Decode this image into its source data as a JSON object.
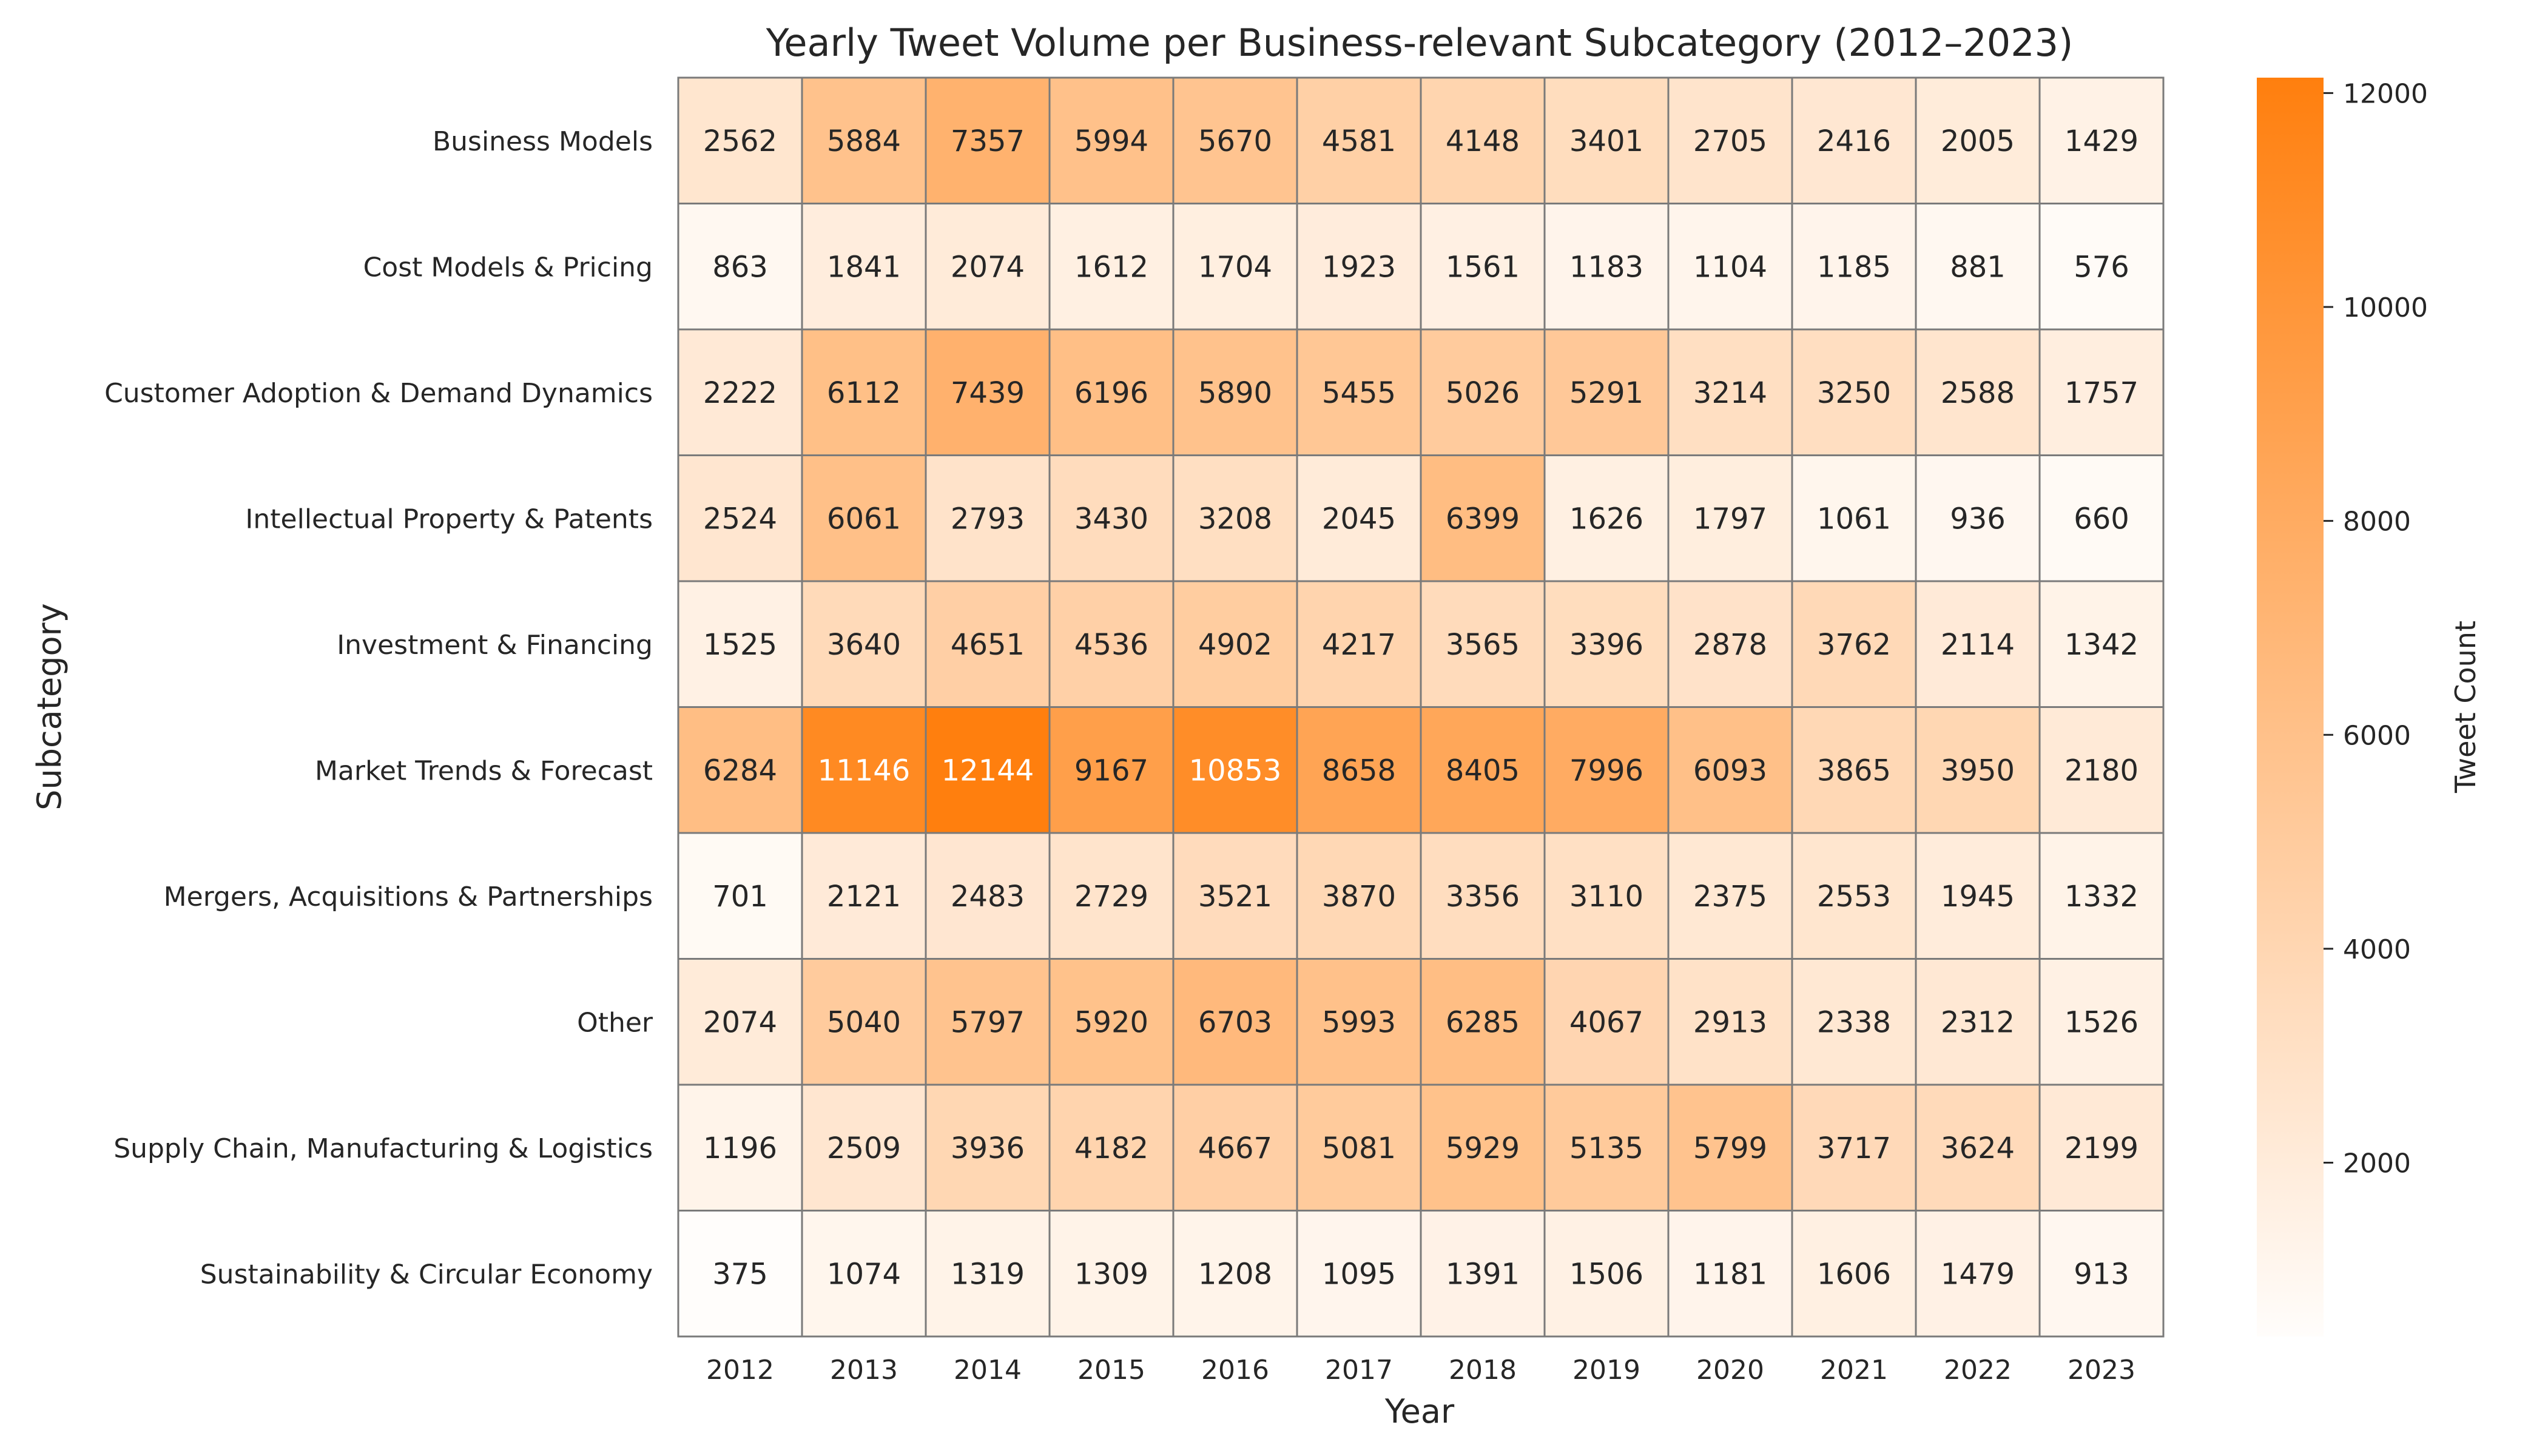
{
  "chart_data": {
    "type": "heatmap",
    "title": "Yearly Tweet Volume per Business-relevant Subcategory (2012–2023)",
    "xlabel": "Year",
    "ylabel": "Subcategory",
    "x": [
      "2012",
      "2013",
      "2014",
      "2015",
      "2016",
      "2017",
      "2018",
      "2019",
      "2020",
      "2021",
      "2022",
      "2023"
    ],
    "y": [
      "Business Models",
      "Cost Models & Pricing",
      "Customer Adoption & Demand Dynamics",
      "Intellectual Property & Patents",
      "Investment & Financing",
      "Market Trends & Forecast",
      "Mergers, Acquisitions & Partnerships",
      "Other",
      "Supply Chain, Manufacturing & Logistics",
      "Sustainability & Circular Economy"
    ],
    "values": [
      [
        2562,
        5884,
        7357,
        5994,
        5670,
        4581,
        4148,
        3401,
        2705,
        2416,
        2005,
        1429
      ],
      [
        863,
        1841,
        2074,
        1612,
        1704,
        1923,
        1561,
        1183,
        1104,
        1185,
        881,
        576
      ],
      [
        2222,
        6112,
        7439,
        6196,
        5890,
        5455,
        5026,
        5291,
        3214,
        3250,
        2588,
        1757
      ],
      [
        2524,
        6061,
        2793,
        3430,
        3208,
        2045,
        6399,
        1626,
        1797,
        1061,
        936,
        660
      ],
      [
        1525,
        3640,
        4651,
        4536,
        4902,
        4217,
        3565,
        3396,
        2878,
        3762,
        2114,
        1342
      ],
      [
        6284,
        11146,
        12144,
        9167,
        10853,
        8658,
        8405,
        7996,
        6093,
        3865,
        3950,
        2180
      ],
      [
        701,
        2121,
        2483,
        2729,
        3521,
        3870,
        3356,
        3110,
        2375,
        2553,
        1945,
        1332
      ],
      [
        2074,
        5040,
        5797,
        5920,
        6703,
        5993,
        6285,
        4067,
        2913,
        2338,
        2312,
        1526
      ],
      [
        1196,
        2509,
        3936,
        4182,
        4667,
        5081,
        5929,
        5135,
        5799,
        3717,
        3624,
        2199
      ],
      [
        375,
        1074,
        1319,
        1309,
        1208,
        1095,
        1391,
        1506,
        1181,
        1606,
        1479,
        913
      ]
    ],
    "colorbar": {
      "label": "Tweet Count",
      "min": 375,
      "max": 12144,
      "ticks": [
        "2000",
        "4000",
        "6000",
        "8000",
        "10000",
        "12000"
      ],
      "color_low": "#fffdfb",
      "color_high": "#ff7f0e"
    },
    "grid": true,
    "annotated": true
  }
}
